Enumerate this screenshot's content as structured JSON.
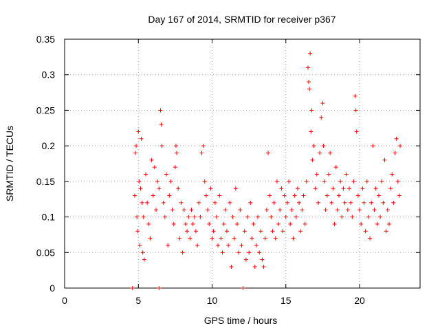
{
  "chart_data": {
    "type": "scatter",
    "title": "Day 167 of 2014, SRMTID for receiver p367",
    "xlabel": "GPS time / hours",
    "ylabel": "SRMTID / TECUs",
    "xlim": [
      0,
      24.1
    ],
    "ylim": [
      0,
      0.35
    ],
    "xticks": [
      0,
      5,
      10,
      15,
      20
    ],
    "xtick_labels": [
      "0",
      "5",
      "10",
      "15",
      "20"
    ],
    "yticks": [
      0,
      0.05,
      0.1,
      0.15,
      0.2,
      0.25,
      0.3,
      0.35
    ],
    "ytick_labels": [
      "0",
      "0.05",
      "0.1",
      "0.15",
      "0.2",
      "0.25",
      "0.3",
      "0.35"
    ],
    "grid": true,
    "marker": "+",
    "color": "#ff0000",
    "series": [
      {
        "name": "SRMTID",
        "points": [
          [
            4.6,
            0.0
          ],
          [
            6.4,
            0.0
          ],
          [
            12.1,
            0.0
          ],
          [
            4.75,
            0.13
          ],
          [
            4.8,
            0.19
          ],
          [
            4.85,
            0.2
          ],
          [
            4.9,
            0.1
          ],
          [
            4.95,
            0.08
          ],
          [
            5.0,
            0.22
          ],
          [
            5.05,
            0.15
          ],
          [
            5.1,
            0.06
          ],
          [
            5.15,
            0.14
          ],
          [
            5.2,
            0.21
          ],
          [
            5.25,
            0.12
          ],
          [
            5.3,
            0.05
          ],
          [
            5.35,
            0.1
          ],
          [
            5.4,
            0.04
          ],
          [
            5.5,
            0.16
          ],
          [
            5.6,
            0.12
          ],
          [
            5.7,
            0.09
          ],
          [
            5.8,
            0.07
          ],
          [
            5.9,
            0.18
          ],
          [
            6.0,
            0.13
          ],
          [
            6.1,
            0.17
          ],
          [
            6.2,
            0.11
          ],
          [
            6.3,
            0.15
          ],
          [
            6.4,
            0.14
          ],
          [
            6.5,
            0.25
          ],
          [
            6.55,
            0.23
          ],
          [
            6.6,
            0.2
          ],
          [
            6.7,
            0.12
          ],
          [
            6.8,
            0.1
          ],
          [
            6.9,
            0.16
          ],
          [
            7.0,
            0.06
          ],
          [
            7.1,
            0.13
          ],
          [
            7.2,
            0.15
          ],
          [
            7.3,
            0.11
          ],
          [
            7.4,
            0.09
          ],
          [
            7.5,
            0.17
          ],
          [
            7.55,
            0.2
          ],
          [
            7.6,
            0.19
          ],
          [
            7.7,
            0.14
          ],
          [
            7.8,
            0.07
          ],
          [
            7.9,
            0.12
          ],
          [
            8.0,
            0.05
          ],
          [
            8.1,
            0.11
          ],
          [
            8.2,
            0.09
          ],
          [
            8.3,
            0.08
          ],
          [
            8.4,
            0.1
          ],
          [
            8.5,
            0.07
          ],
          [
            8.6,
            0.11
          ],
          [
            8.7,
            0.09
          ],
          [
            8.8,
            0.1
          ],
          [
            8.9,
            0.08
          ],
          [
            9.0,
            0.06
          ],
          [
            9.1,
            0.12
          ],
          [
            9.2,
            0.1
          ],
          [
            9.3,
            0.19
          ],
          [
            9.4,
            0.2
          ],
          [
            9.5,
            0.15
          ],
          [
            9.6,
            0.13
          ],
          [
            9.7,
            0.11
          ],
          [
            9.8,
            0.09
          ],
          [
            9.9,
            0.14
          ],
          [
            10.0,
            0.07
          ],
          [
            10.1,
            0.08
          ],
          [
            10.2,
            0.12
          ],
          [
            10.3,
            0.1
          ],
          [
            10.4,
            0.06
          ],
          [
            10.5,
            0.13
          ],
          [
            10.6,
            0.07
          ],
          [
            10.7,
            0.05
          ],
          [
            10.8,
            0.09
          ],
          [
            10.9,
            0.11
          ],
          [
            11.0,
            0.08
          ],
          [
            11.1,
            0.06
          ],
          [
            11.2,
            0.12
          ],
          [
            11.3,
            0.03
          ],
          [
            11.4,
            0.1
          ],
          [
            11.5,
            0.07
          ],
          [
            11.6,
            0.14
          ],
          [
            11.7,
            0.09
          ],
          [
            11.8,
            0.05
          ],
          [
            11.9,
            0.11
          ],
          [
            12.0,
            0.06
          ],
          [
            12.2,
            0.08
          ],
          [
            12.3,
            0.04
          ],
          [
            12.4,
            0.1
          ],
          [
            12.5,
            0.05
          ],
          [
            12.6,
            0.12
          ],
          [
            12.7,
            0.07
          ],
          [
            12.8,
            0.09
          ],
          [
            12.9,
            0.03
          ],
          [
            13.0,
            0.06
          ],
          [
            13.1,
            0.1
          ],
          [
            13.2,
            0.05
          ],
          [
            13.3,
            0.08
          ],
          [
            13.4,
            0.04
          ],
          [
            13.5,
            0.03
          ],
          [
            13.6,
            0.07
          ],
          [
            13.7,
            0.11
          ],
          [
            13.8,
            0.19
          ],
          [
            13.9,
            0.13
          ],
          [
            14.0,
            0.1
          ],
          [
            14.1,
            0.08
          ],
          [
            14.2,
            0.12
          ],
          [
            14.3,
            0.07
          ],
          [
            14.4,
            0.15
          ],
          [
            14.5,
            0.09
          ],
          [
            14.6,
            0.11
          ],
          [
            14.7,
            0.14
          ],
          [
            14.8,
            0.08
          ],
          [
            14.9,
            0.13
          ],
          [
            15.0,
            0.1
          ],
          [
            15.1,
            0.12
          ],
          [
            15.2,
            0.15
          ],
          [
            15.3,
            0.09
          ],
          [
            15.4,
            0.11
          ],
          [
            15.5,
            0.07
          ],
          [
            15.6,
            0.13
          ],
          [
            15.7,
            0.1
          ],
          [
            15.8,
            0.14
          ],
          [
            15.9,
            0.12
          ],
          [
            16.0,
            0.08
          ],
          [
            16.1,
            0.11
          ],
          [
            16.2,
            0.13
          ],
          [
            16.3,
            0.09
          ],
          [
            16.4,
            0.15
          ],
          [
            16.5,
            0.31
          ],
          [
            16.55,
            0.29
          ],
          [
            16.6,
            0.28
          ],
          [
            16.65,
            0.33
          ],
          [
            16.7,
            0.22
          ],
          [
            16.75,
            0.25
          ],
          [
            16.8,
            0.18
          ],
          [
            16.9,
            0.2
          ],
          [
            17.0,
            0.14
          ],
          [
            17.1,
            0.16
          ],
          [
            17.2,
            0.12
          ],
          [
            17.3,
            0.19
          ],
          [
            17.4,
            0.24
          ],
          [
            17.5,
            0.26
          ],
          [
            17.55,
            0.2
          ],
          [
            17.6,
            0.15
          ],
          [
            17.7,
            0.11
          ],
          [
            17.8,
            0.13
          ],
          [
            17.9,
            0.16
          ],
          [
            18.0,
            0.19
          ],
          [
            18.1,
            0.12
          ],
          [
            18.2,
            0.14
          ],
          [
            18.3,
            0.09
          ],
          [
            18.4,
            0.17
          ],
          [
            18.5,
            0.11
          ],
          [
            18.6,
            0.13
          ],
          [
            18.7,
            0.15
          ],
          [
            18.8,
            0.1
          ],
          [
            18.9,
            0.14
          ],
          [
            19.0,
            0.12
          ],
          [
            19.1,
            0.16
          ],
          [
            19.2,
            0.11
          ],
          [
            19.3,
            0.14
          ],
          [
            19.4,
            0.12
          ],
          [
            19.5,
            0.1
          ],
          [
            19.6,
            0.15
          ],
          [
            19.7,
            0.27
          ],
          [
            19.75,
            0.25
          ],
          [
            19.8,
            0.22
          ],
          [
            19.9,
            0.13
          ],
          [
            20.0,
            0.11
          ],
          [
            20.1,
            0.09
          ],
          [
            20.2,
            0.14
          ],
          [
            20.3,
            0.12
          ],
          [
            20.4,
            0.08
          ],
          [
            20.5,
            0.15
          ],
          [
            20.6,
            0.1
          ],
          [
            20.7,
            0.07
          ],
          [
            20.8,
            0.12
          ],
          [
            20.9,
            0.2
          ],
          [
            21.0,
            0.11
          ],
          [
            21.1,
            0.14
          ],
          [
            21.2,
            0.09
          ],
          [
            21.3,
            0.13
          ],
          [
            21.4,
            0.1
          ],
          [
            21.5,
            0.15
          ],
          [
            21.6,
            0.12
          ],
          [
            21.7,
            0.18
          ],
          [
            21.8,
            0.08
          ],
          [
            21.9,
            0.11
          ],
          [
            22.0,
            0.09
          ],
          [
            22.1,
            0.14
          ],
          [
            22.2,
            0.16
          ],
          [
            22.3,
            0.12
          ],
          [
            22.4,
            0.19
          ],
          [
            22.5,
            0.21
          ],
          [
            22.6,
            0.15
          ],
          [
            22.7,
            0.13
          ],
          [
            22.75,
            0.2
          ]
        ]
      }
    ]
  }
}
